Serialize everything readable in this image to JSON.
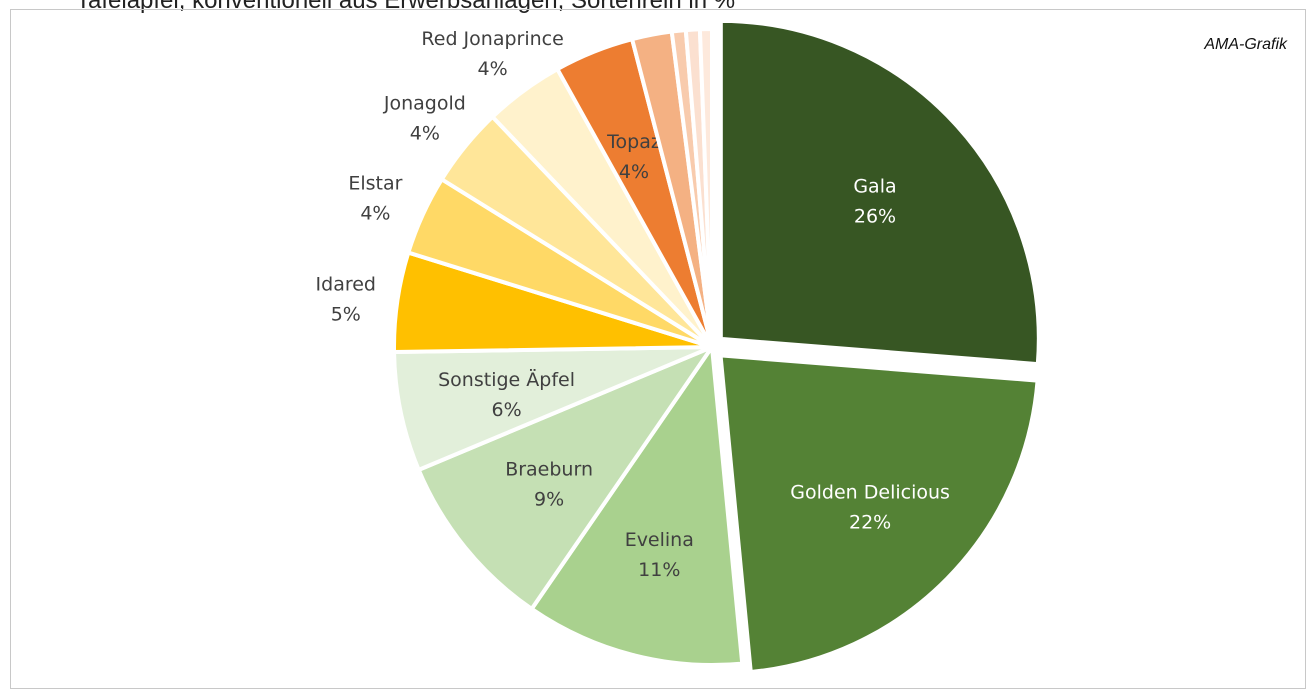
{
  "title": "Tafeläpfel, konventionell aus Erwerbsanlagen, Sortenrein in %",
  "credit": "AMA-Grafik",
  "chart_data": {
    "type": "pie",
    "title": "Tafeläpfel, konventionell aus Erwerbsanlagen, Sortenrein in %",
    "slices": [
      {
        "name": "Gala",
        "value": 26,
        "label": "26%",
        "color": "#375623",
        "text": "light",
        "exploded": true
      },
      {
        "name": "Golden Delicious",
        "value": 22,
        "label": "22%",
        "color": "#548235",
        "text": "light",
        "exploded": true
      },
      {
        "name": "Evelina",
        "value": 11,
        "label": "11%",
        "color": "#a9d18e",
        "text": "dark"
      },
      {
        "name": "Braeburn",
        "value": 9,
        "label": "9%",
        "color": "#c5e0b4",
        "text": "dark"
      },
      {
        "name": "Sonstige Äpfel",
        "value": 6,
        "label": "6%",
        "color": "#e2efda",
        "text": "dark"
      },
      {
        "name": "Idared",
        "value": 5,
        "label": "5%",
        "color": "#ffc000",
        "text": "dark",
        "outside": true
      },
      {
        "name": "Elstar",
        "value": 4,
        "label": "4%",
        "color": "#ffd966",
        "text": "dark",
        "outside": true
      },
      {
        "name": "Jonagold",
        "value": 4,
        "label": "4%",
        "color": "#ffe699",
        "text": "dark",
        "outside": true
      },
      {
        "name": "Red Jonaprince",
        "value": 4,
        "label": "4%",
        "color": "#fff2cc",
        "text": "dark",
        "outside": true
      },
      {
        "name": "Topaz",
        "value": 4,
        "label": "4%",
        "color": "#ed7d31",
        "text": "dark"
      },
      {
        "name": "",
        "value": 2,
        "label": "",
        "color": "#f4b183"
      },
      {
        "name": "",
        "value": 0.7,
        "label": "",
        "color": "#f8cbad"
      },
      {
        "name": "",
        "value": 0.7,
        "label": "",
        "color": "#fbe0d0"
      },
      {
        "name": "",
        "value": 0.6,
        "label": "",
        "color": "#fde9dc"
      }
    ]
  }
}
